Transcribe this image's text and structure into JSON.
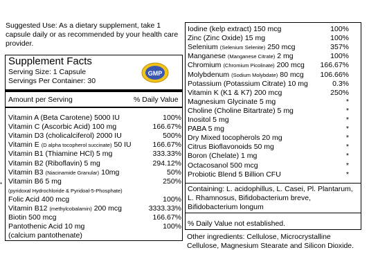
{
  "suggested_use": "Suggested Use: As a dietary supplement, take 1 capsule daily or as recommended by your health care provider.",
  "facts": {
    "title": "Supplement Facts",
    "serving_size": "Serving Size: 1 Capsule",
    "servings": "Servings Per Container: 30",
    "amount_header": "Amount per Serving",
    "dv_header": "% Daily Value",
    "logo_text": "GMP"
  },
  "left_rows": [
    {
      "name": "Vitamin A (Beta Carotene) 5000 IU",
      "dv": "100%"
    },
    {
      "name": "Vitamin C (Ascorbic Acid) 100 mg",
      "dv": "166.67%"
    },
    {
      "name": "Vitamin D3 (cholicalciferol) 2000 IU",
      "dv": "500%"
    },
    {
      "name": "Vitamin E",
      "sub": "(D alpha tocopherol succinate)",
      "tail": "50 IU",
      "dv": "166.67%"
    },
    {
      "name": "Vitamin B1 (Thiamine HCl) 5 mg",
      "dv": "333.33%"
    },
    {
      "name": "Vitamin B2 (Riboflavin) 5 mg",
      "dv": "294.12%"
    },
    {
      "name": "Vitamin B3",
      "sub": "(Niacinamide Granular)",
      "tail": "10mg",
      "dv": "50%"
    },
    {
      "name": "Vitamin B6  5 mg",
      "dv": "250%"
    },
    {
      "name": "",
      "sub": "(pyridoxal Hydrochloride & Pyridoal-5-Phosphate)",
      "dv": ""
    },
    {
      "name": "Folic Acid 400 mcg",
      "dv": "100%"
    },
    {
      "name": "Vitamin B12",
      "sub": "(methylcobalamin)",
      "tail": "200 mcg",
      "dv": "3333.33%"
    },
    {
      "name": "Biotin  500 mcg",
      "dv": "166.67%"
    },
    {
      "name": "Pantothenic Acid  10 mg",
      "dv": "100%"
    },
    {
      "name": "  (calcium pantothenate)",
      "dv": ""
    }
  ],
  "right_rows": [
    {
      "name": "Iodine (kelp extract) 150 mcg",
      "dv": "100%"
    },
    {
      "name": "Zinc (Zinc Oxide) 15 mg",
      "dv": "100%"
    },
    {
      "name": "Selenium",
      "sub": "(Selenium Selenite)",
      "tail": "250 mcg",
      "dv": "357%"
    },
    {
      "name": "Manganese",
      "sub": "(Manganese Citrate)",
      "tail": "2 mg",
      "dv": "100%"
    },
    {
      "name": "Chromium",
      "sub": "(Chromium Picolinate)",
      "tail": "200 mcg",
      "dv": "166.67%"
    },
    {
      "name": "Molybdenum",
      "sub": "(Sodium Molybdate)",
      "tail": "80 mcg",
      "dv": "106.66%"
    },
    {
      "name": "Potassium (Potassium Citrate) 10 mg",
      "dv": "0.3%"
    },
    {
      "name": "Vitamin K (K1 & K7) 200 mcg",
      "dv": "250%"
    },
    {
      "name": "Magnesium Glycinate 5 mg",
      "dv": "*"
    },
    {
      "name": "Choline (Choline Bitartrate) 5 mg",
      "dv": "*"
    },
    {
      "name": "Inositol 5 mg",
      "dv": "*"
    },
    {
      "name": "PABA 5 mg",
      "dv": "*"
    },
    {
      "name": "Dry Mixed tocopherols 20 mg",
      "dv": "*"
    },
    {
      "name": "Citrus Bioflavonoids 50 mg",
      "dv": "*"
    },
    {
      "name": "Boron (Chelate) 1 mg",
      "dv": "*"
    },
    {
      "name": "Octacosanol 500 mcg",
      "dv": "*"
    },
    {
      "name": "Probiotic Blend 5 Billion CFU",
      "dv": "*"
    }
  ],
  "containing": "Containing:  L. acidophillus, L. Casei, Pl. Plantarum, L. Rhamnosus, Bifidobacterium breve, Bifidobacterium longum",
  "dv_note": "% Daily Value not established.",
  "other_ingredients": "Other ingredients: Cellulose, Microcrystalline Cellulose, Magnesium Stearate and Silicon Dioxide.",
  "side_star": "*"
}
